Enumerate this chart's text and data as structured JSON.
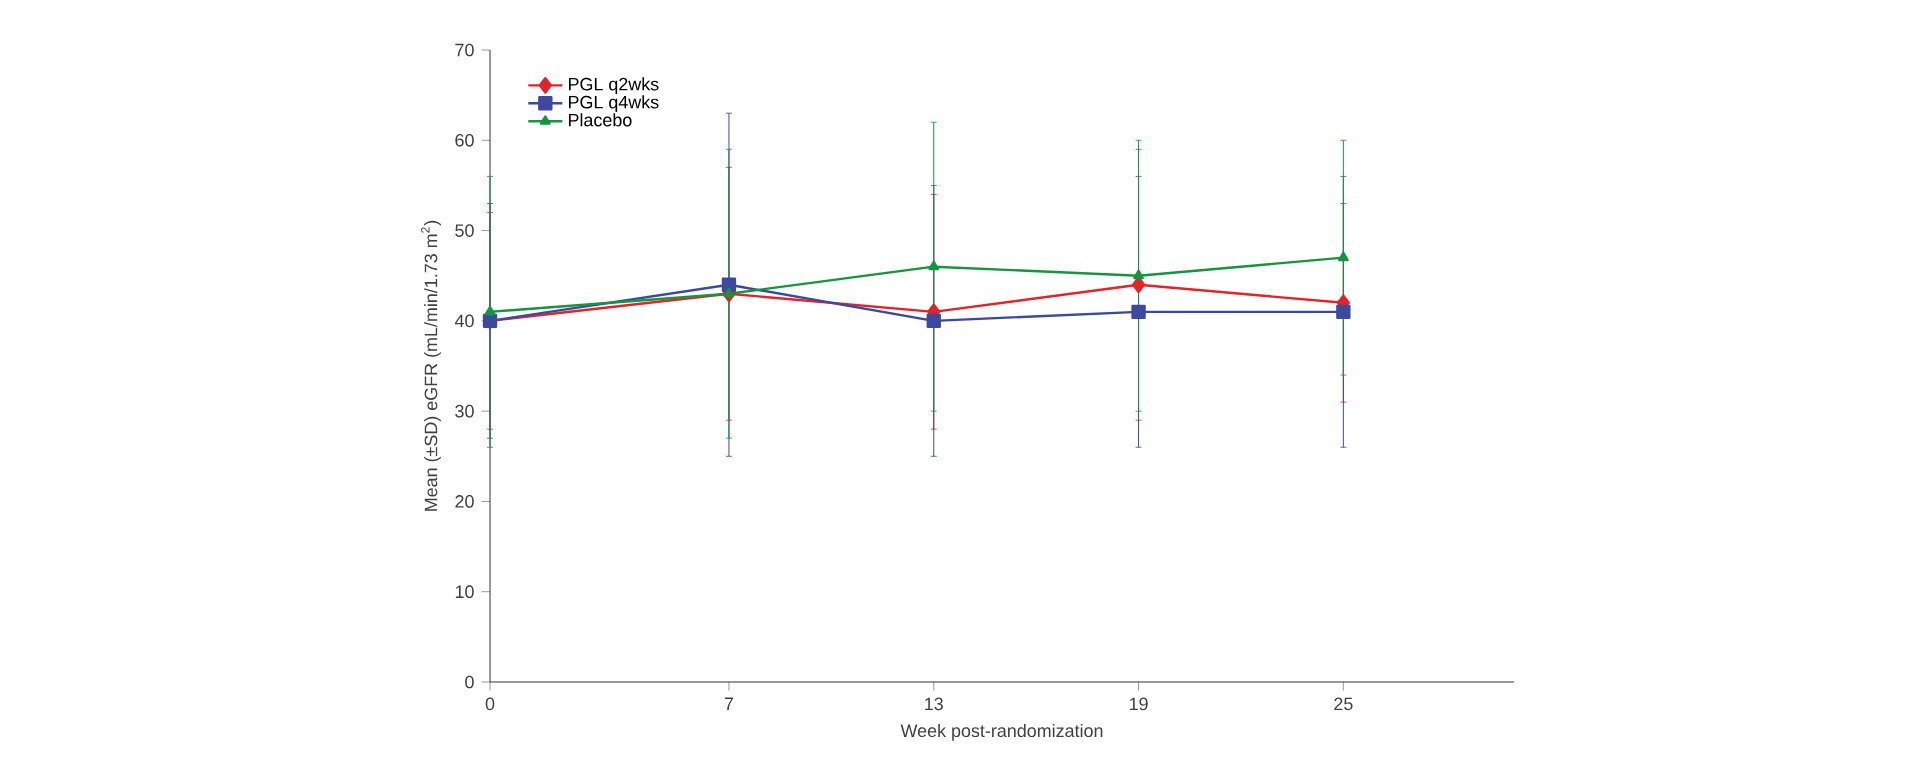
{
  "chart_data": {
    "type": "line",
    "xlabel": "Week post-randomization",
    "ylabel": "Mean (±SD) eGFR (mL/min/1.73 m$^{2}$)",
    "x": [
      0,
      7,
      13,
      19,
      25
    ],
    "xlim": [
      0,
      30
    ],
    "xticks": [
      0,
      7,
      13,
      19,
      25
    ],
    "ylim": [
      0,
      70
    ],
    "yticks": [
      0,
      10,
      20,
      30,
      40,
      50,
      60,
      70
    ],
    "grid": false,
    "legend": "top left",
    "series": [
      {
        "name": "PGL q2wks",
        "color": "#e0242b",
        "marker": "diamond",
        "values": [
          40,
          43,
          41,
          44,
          42
        ],
        "errors": [
          12,
          14,
          13,
          15,
          11
        ]
      },
      {
        "name": "PGL q4wks",
        "color": "#3b4a9c",
        "marker": "square",
        "values": [
          40,
          44,
          40,
          41,
          41
        ],
        "errors": [
          13,
          19,
          15,
          15,
          15
        ]
      },
      {
        "name": "Placebo",
        "color": "#16943f",
        "marker": "triangle",
        "values": [
          41,
          43,
          46,
          45,
          47
        ],
        "errors": [
          15,
          16,
          16,
          15,
          13
        ]
      }
    ]
  }
}
